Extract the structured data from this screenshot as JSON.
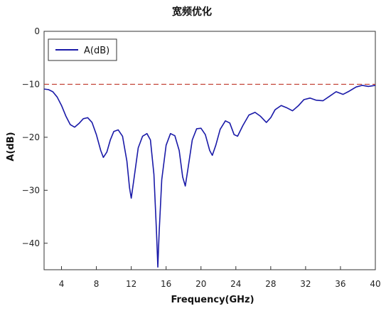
{
  "chart_data": {
    "type": "line",
    "title": "宽频优化",
    "xlabel": "Frequency(GHz)",
    "ylabel": "A(dB)",
    "xlim": [
      2,
      40
    ],
    "ylim": [
      -45,
      0
    ],
    "x_ticks": [
      4,
      8,
      12,
      16,
      20,
      24,
      28,
      32,
      36,
      40
    ],
    "y_ticks": [
      0,
      -10,
      -20,
      -30,
      -40
    ],
    "grid": false,
    "legend": {
      "position": "top-left",
      "entries": [
        "A(dB)"
      ]
    },
    "reference_line": {
      "y": -10,
      "color": "#c0392b",
      "style": "dashed"
    },
    "series": [
      {
        "name": "A(dB)",
        "color": "#1a1aa8",
        "points": [
          [
            2.0,
            -10.9
          ],
          [
            2.5,
            -11.0
          ],
          [
            3.0,
            -11.4
          ],
          [
            3.5,
            -12.4
          ],
          [
            4.0,
            -14.0
          ],
          [
            4.5,
            -16.0
          ],
          [
            5.0,
            -17.6
          ],
          [
            5.5,
            -18.1
          ],
          [
            6.0,
            -17.4
          ],
          [
            6.5,
            -16.5
          ],
          [
            7.0,
            -16.3
          ],
          [
            7.5,
            -17.2
          ],
          [
            8.0,
            -19.5
          ],
          [
            8.5,
            -22.5
          ],
          [
            8.8,
            -23.8
          ],
          [
            9.2,
            -22.8
          ],
          [
            9.6,
            -20.5
          ],
          [
            10.0,
            -18.9
          ],
          [
            10.5,
            -18.6
          ],
          [
            11.0,
            -19.8
          ],
          [
            11.5,
            -24.5
          ],
          [
            11.8,
            -29.5
          ],
          [
            12.0,
            -31.5
          ],
          [
            12.3,
            -28.0
          ],
          [
            12.8,
            -22.0
          ],
          [
            13.3,
            -19.8
          ],
          [
            13.8,
            -19.3
          ],
          [
            14.2,
            -20.5
          ],
          [
            14.6,
            -27.0
          ],
          [
            14.9,
            -38.0
          ],
          [
            15.05,
            -44.5
          ],
          [
            15.2,
            -38.0
          ],
          [
            15.5,
            -28.0
          ],
          [
            16.0,
            -21.5
          ],
          [
            16.5,
            -19.3
          ],
          [
            17.0,
            -19.7
          ],
          [
            17.5,
            -22.5
          ],
          [
            17.9,
            -27.5
          ],
          [
            18.2,
            -29.2
          ],
          [
            18.5,
            -26.0
          ],
          [
            19.0,
            -20.5
          ],
          [
            19.5,
            -18.4
          ],
          [
            20.0,
            -18.3
          ],
          [
            20.5,
            -19.5
          ],
          [
            21.0,
            -22.5
          ],
          [
            21.3,
            -23.4
          ],
          [
            21.7,
            -21.5
          ],
          [
            22.2,
            -18.5
          ],
          [
            22.8,
            -16.9
          ],
          [
            23.3,
            -17.3
          ],
          [
            23.8,
            -19.5
          ],
          [
            24.2,
            -19.8
          ],
          [
            24.8,
            -17.8
          ],
          [
            25.5,
            -15.8
          ],
          [
            26.2,
            -15.3
          ],
          [
            26.8,
            -16.0
          ],
          [
            27.5,
            -17.2
          ],
          [
            28.0,
            -16.3
          ],
          [
            28.5,
            -14.8
          ],
          [
            29.2,
            -14.0
          ],
          [
            29.8,
            -14.4
          ],
          [
            30.5,
            -15.0
          ],
          [
            31.2,
            -14.0
          ],
          [
            31.8,
            -12.9
          ],
          [
            32.5,
            -12.6
          ],
          [
            33.2,
            -13.0
          ],
          [
            34.0,
            -13.1
          ],
          [
            34.8,
            -12.2
          ],
          [
            35.5,
            -11.4
          ],
          [
            36.3,
            -11.9
          ],
          [
            37.0,
            -11.3
          ],
          [
            37.8,
            -10.5
          ],
          [
            38.5,
            -10.2
          ],
          [
            39.2,
            -10.4
          ],
          [
            40.0,
            -10.2
          ]
        ]
      }
    ]
  }
}
